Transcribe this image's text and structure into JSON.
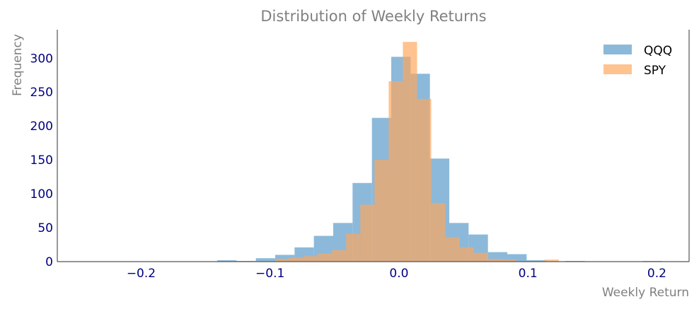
{
  "chart_data": {
    "type": "bar",
    "title": "Distribution of Weekly Returns",
    "xlabel": "Weekly Return",
    "ylabel": "Frequency",
    "xlim": [
      -0.265,
      0.225
    ],
    "ylim": [
      0,
      342
    ],
    "xticks": [
      -0.2,
      -0.1,
      0.0,
      0.1,
      0.2
    ],
    "xtick_labels": [
      "−0.2",
      "−0.1",
      "0.0",
      "0.1",
      "0.2"
    ],
    "yticks": [
      0,
      50,
      100,
      150,
      200,
      250,
      300
    ],
    "ytick_labels": [
      "0",
      "50",
      "100",
      "150",
      "200",
      "250",
      "300"
    ],
    "grid": false,
    "legend_position": "top-right",
    "series": [
      {
        "name": "QQQ",
        "color": "#8cb9da",
        "opacity": 1,
        "bins": [
          {
            "x0": -0.141,
            "x1": -0.126,
            "count": 2
          },
          {
            "x0": -0.126,
            "x1": -0.111,
            "count": 1
          },
          {
            "x0": -0.111,
            "x1": -0.096,
            "count": 5
          },
          {
            "x0": -0.096,
            "x1": -0.081,
            "count": 10
          },
          {
            "x0": -0.081,
            "x1": -0.066,
            "count": 21
          },
          {
            "x0": -0.066,
            "x1": -0.051,
            "count": 38
          },
          {
            "x0": -0.051,
            "x1": -0.036,
            "count": 57
          },
          {
            "x0": -0.036,
            "x1": -0.021,
            "count": 116
          },
          {
            "x0": -0.021,
            "x1": -0.006,
            "count": 212
          },
          {
            "x0": -0.006,
            "x1": 0.009,
            "count": 302
          },
          {
            "x0": 0.009,
            "x1": 0.024,
            "count": 277
          },
          {
            "x0": 0.024,
            "x1": 0.039,
            "count": 152
          },
          {
            "x0": 0.039,
            "x1": 0.054,
            "count": 57
          },
          {
            "x0": 0.054,
            "x1": 0.069,
            "count": 40
          },
          {
            "x0": 0.069,
            "x1": 0.084,
            "count": 14
          },
          {
            "x0": 0.084,
            "x1": 0.099,
            "count": 11
          },
          {
            "x0": 0.099,
            "x1": 0.114,
            "count": 2
          },
          {
            "x0": 0.129,
            "x1": 0.144,
            "count": 1
          },
          {
            "x0": 0.189,
            "x1": 0.204,
            "count": 1
          }
        ]
      },
      {
        "name": "SPY",
        "color": "#ffa75c",
        "opacity": 0.68,
        "bins": [
          {
            "x0": -0.118,
            "x1": -0.107,
            "count": 1
          },
          {
            "x0": -0.096,
            "x1": -0.085,
            "count": 4
          },
          {
            "x0": -0.085,
            "x1": -0.074,
            "count": 6
          },
          {
            "x0": -0.074,
            "x1": -0.063,
            "count": 8
          },
          {
            "x0": -0.063,
            "x1": -0.052,
            "count": 12
          },
          {
            "x0": -0.052,
            "x1": -0.041,
            "count": 17
          },
          {
            "x0": -0.041,
            "x1": -0.03,
            "count": 41
          },
          {
            "x0": -0.03,
            "x1": -0.019,
            "count": 84
          },
          {
            "x0": -0.019,
            "x1": -0.008,
            "count": 150
          },
          {
            "x0": -0.008,
            "x1": 0.003,
            "count": 266
          },
          {
            "x0": 0.003,
            "x1": 0.014,
            "count": 324
          },
          {
            "x0": 0.014,
            "x1": 0.025,
            "count": 240
          },
          {
            "x0": 0.025,
            "x1": 0.036,
            "count": 86
          },
          {
            "x0": 0.036,
            "x1": 0.047,
            "count": 36
          },
          {
            "x0": 0.047,
            "x1": 0.058,
            "count": 21
          },
          {
            "x0": 0.058,
            "x1": 0.069,
            "count": 13
          },
          {
            "x0": 0.069,
            "x1": 0.08,
            "count": 4
          },
          {
            "x0": 0.08,
            "x1": 0.091,
            "count": 3
          },
          {
            "x0": 0.102,
            "x1": 0.113,
            "count": 1
          },
          {
            "x0": 0.113,
            "x1": 0.124,
            "count": 3
          }
        ]
      }
    ]
  }
}
